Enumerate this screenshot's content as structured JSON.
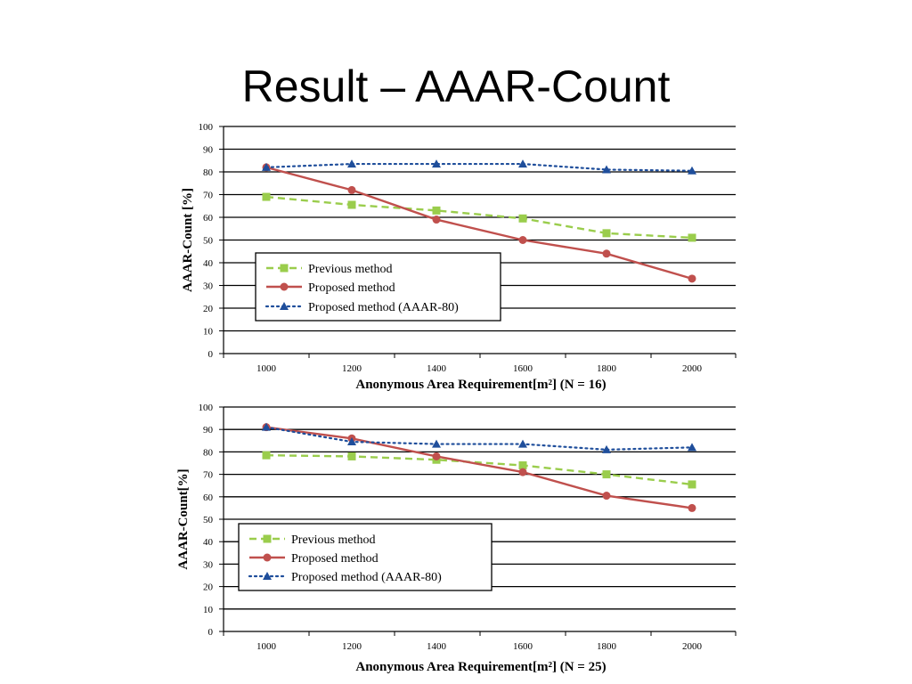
{
  "slide": {
    "title": "Result – AAAR-Count"
  },
  "chart_data": [
    {
      "type": "line",
      "x": [
        1000,
        1200,
        1400,
        1600,
        1800,
        2000
      ],
      "xlabel": "Anonymous Area Requirement[m²] (N = 16)",
      "ylabel": "AAAR-Count [%]",
      "ylim": [
        0,
        100
      ],
      "yticks": [
        "0",
        "10",
        "20",
        "30",
        "40",
        "50",
        "60",
        "70",
        "80",
        "90",
        "100"
      ],
      "xticks": [
        "1000",
        "1200",
        "1400",
        "1600",
        "1800",
        "2000"
      ],
      "grid": true,
      "legend_position": "lower-left",
      "series": [
        {
          "name": "Previous method",
          "values": [
            69,
            65.5,
            63,
            59.5,
            53,
            51
          ],
          "color": "#9acd4c",
          "dash": "dashed",
          "marker": "square"
        },
        {
          "name": "Proposed  method",
          "values": [
            82,
            72,
            59,
            50,
            44,
            33
          ],
          "color": "#c0504d",
          "dash": "solid",
          "marker": "circle"
        },
        {
          "name": "Proposed method (AAAR-80)",
          "values": [
            82,
            83.5,
            83.5,
            83.5,
            81,
            80.5
          ],
          "color": "#1f4e9b",
          "dash": "dotted",
          "marker": "triangle"
        }
      ]
    },
    {
      "type": "line",
      "x": [
        1000,
        1200,
        1400,
        1600,
        1800,
        2000
      ],
      "xlabel": "Anonymous Area Requirement[m²] (N = 25)",
      "ylabel": "AAAR-Count[%]",
      "ylim": [
        0,
        100
      ],
      "yticks": [
        "0",
        "10",
        "20",
        "30",
        "40",
        "50",
        "60",
        "70",
        "80",
        "90",
        "100"
      ],
      "xticks": [
        "1000",
        "1200",
        "1400",
        "1600",
        "1800",
        "2000"
      ],
      "grid": true,
      "legend_position": "lower-left",
      "series": [
        {
          "name": "Previous method",
          "values": [
            78.5,
            78,
            76.5,
            74,
            70,
            65.5
          ],
          "color": "#9acd4c",
          "dash": "dashed",
          "marker": "square"
        },
        {
          "name": "Proposed  method",
          "values": [
            91,
            86,
            78,
            71,
            60.5,
            55
          ],
          "color": "#c0504d",
          "dash": "solid",
          "marker": "circle"
        },
        {
          "name": "Proposed method (AAAR-80)",
          "values": [
            91,
            84.5,
            83.5,
            83.5,
            81,
            82
          ],
          "color": "#1f4e9b",
          "dash": "dotted",
          "marker": "triangle"
        }
      ]
    }
  ]
}
